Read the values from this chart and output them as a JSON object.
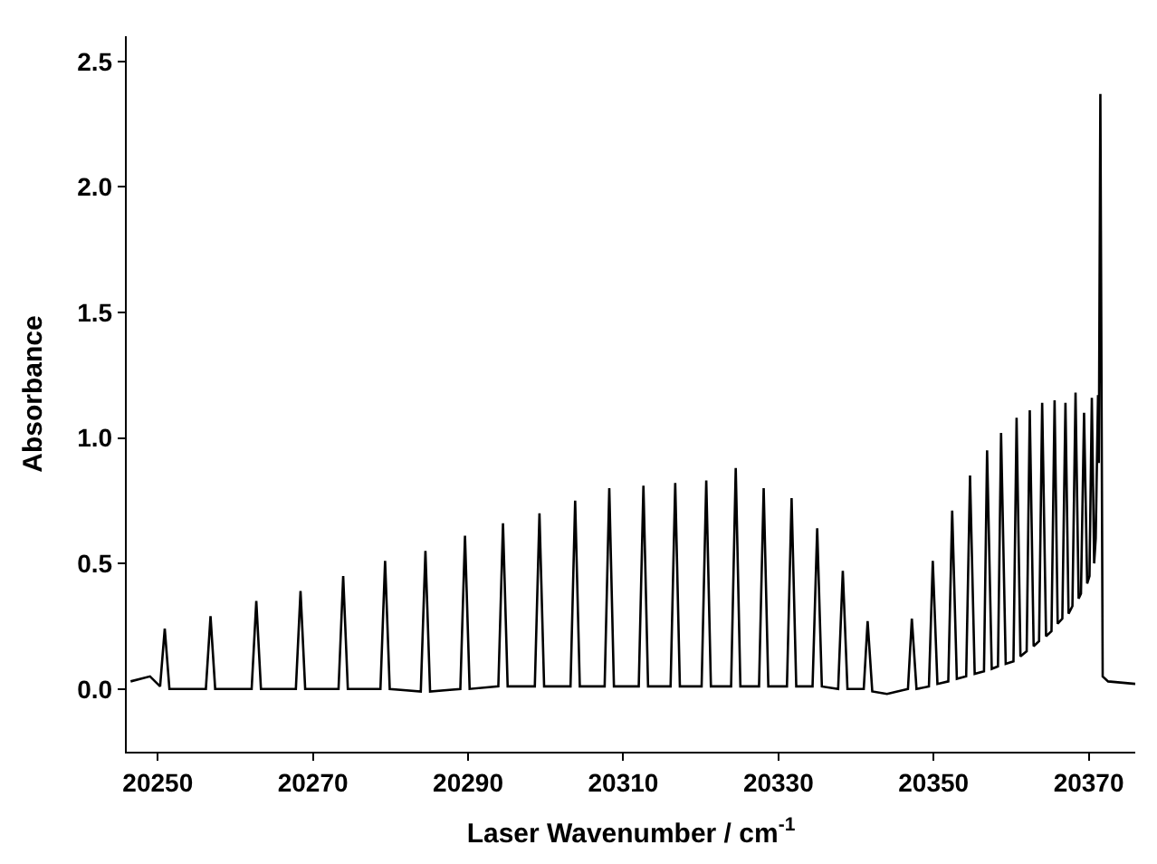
{
  "chart_data": {
    "type": "line",
    "xlabel": "Laser Wavenumber / cm$^{-1}$",
    "ylabel": "Absorbance",
    "xlim": [
      20246,
      20376
    ],
    "ylim": [
      -0.25,
      2.6
    ],
    "xticks": [
      20250,
      20270,
      20290,
      20310,
      20330,
      20350,
      20370
    ],
    "yticks": [
      {
        "value": 0,
        "label": "0.0"
      },
      {
        "value": 0.5,
        "label": "0.5"
      },
      {
        "value": 1,
        "label": "1.0"
      },
      {
        "value": 1.5,
        "label": "1.5"
      },
      {
        "value": 2,
        "label": "2.0"
      },
      {
        "value": 2.5,
        "label": "2.5"
      }
    ],
    "marker": "none",
    "line_style": "solid",
    "series": [
      {
        "color": "#000000",
        "x": [
          20246.5,
          20249,
          20250.3,
          20250.9,
          20251.5,
          20256.2,
          20256.8,
          20257.4,
          20262.1,
          20262.7,
          20263.3,
          20267.8,
          20268.4,
          20269.0,
          20273.3,
          20273.9,
          20274.5,
          20278.7,
          20279.3,
          20279.9,
          20283.9,
          20284.5,
          20285.1,
          20289.0,
          20289.6,
          20290.2,
          20293.9,
          20294.5,
          20295.1,
          20298.6,
          20299.2,
          20299.8,
          20303.2,
          20303.8,
          20304.4,
          20307.6,
          20308.2,
          20308.8,
          20312.0,
          20312.6,
          20313.2,
          20316.1,
          20316.7,
          20317.3,
          20320.1,
          20320.7,
          20321.3,
          20323.9,
          20324.5,
          20325.1,
          20327.5,
          20328.1,
          20328.7,
          20331.1,
          20331.7,
          20332.3,
          20334.4,
          20335.0,
          20335.6,
          20337.7,
          20338.3,
          20338.9,
          20341.0,
          20341.5,
          20342.1,
          20344,
          20346.7,
          20347.2,
          20347.8,
          20349.4,
          20349.9,
          20350.5,
          20351.9,
          20352.4,
          20353.0,
          20354.2,
          20354.7,
          20355.3,
          20356.5,
          20356.9,
          20357.5,
          20358.3,
          20358.7,
          20359.3,
          20360.3,
          20360.7,
          20361.2,
          20362.0,
          20362.4,
          20362.9,
          20363.6,
          20364.0,
          20364.5,
          20365.2,
          20365.6,
          20366.0,
          20366.6,
          20367.0,
          20367.4,
          20367.9,
          20368.3,
          20368.7,
          20369.0,
          20369.4,
          20369.8,
          20370.1,
          20370.4,
          20370.7,
          20370.9,
          20371.2,
          20371.3,
          20371.5,
          20371.8,
          20372.5,
          20376
        ],
        "values": [
          0.03,
          0.05,
          0.01,
          0.24,
          0.0,
          0.0,
          0.29,
          0.0,
          0.0,
          0.35,
          0.0,
          0.0,
          0.39,
          0.0,
          0.0,
          0.45,
          0.0,
          0.0,
          0.51,
          0.0,
          -0.01,
          0.55,
          -0.01,
          0.0,
          0.61,
          0.0,
          0.01,
          0.66,
          0.01,
          0.01,
          0.7,
          0.01,
          0.01,
          0.75,
          0.01,
          0.01,
          0.8,
          0.01,
          0.01,
          0.81,
          0.01,
          0.01,
          0.82,
          0.01,
          0.01,
          0.83,
          0.01,
          0.01,
          0.88,
          0.01,
          0.01,
          0.8,
          0.01,
          0.01,
          0.76,
          0.01,
          0.01,
          0.64,
          0.01,
          0.0,
          0.47,
          0.0,
          0.0,
          0.27,
          -0.01,
          -0.02,
          0.0,
          0.28,
          0.0,
          0.01,
          0.51,
          0.02,
          0.03,
          0.71,
          0.04,
          0.05,
          0.85,
          0.06,
          0.07,
          0.95,
          0.08,
          0.09,
          1.02,
          0.1,
          0.11,
          1.08,
          0.13,
          0.15,
          1.11,
          0.17,
          0.19,
          1.14,
          0.21,
          0.23,
          1.15,
          0.26,
          0.28,
          1.14,
          0.3,
          0.33,
          1.18,
          0.36,
          0.38,
          1.1,
          0.42,
          0.45,
          1.16,
          0.5,
          0.6,
          1.17,
          0.9,
          2.37,
          0.05,
          0.03,
          0.02
        ]
      }
    ]
  }
}
